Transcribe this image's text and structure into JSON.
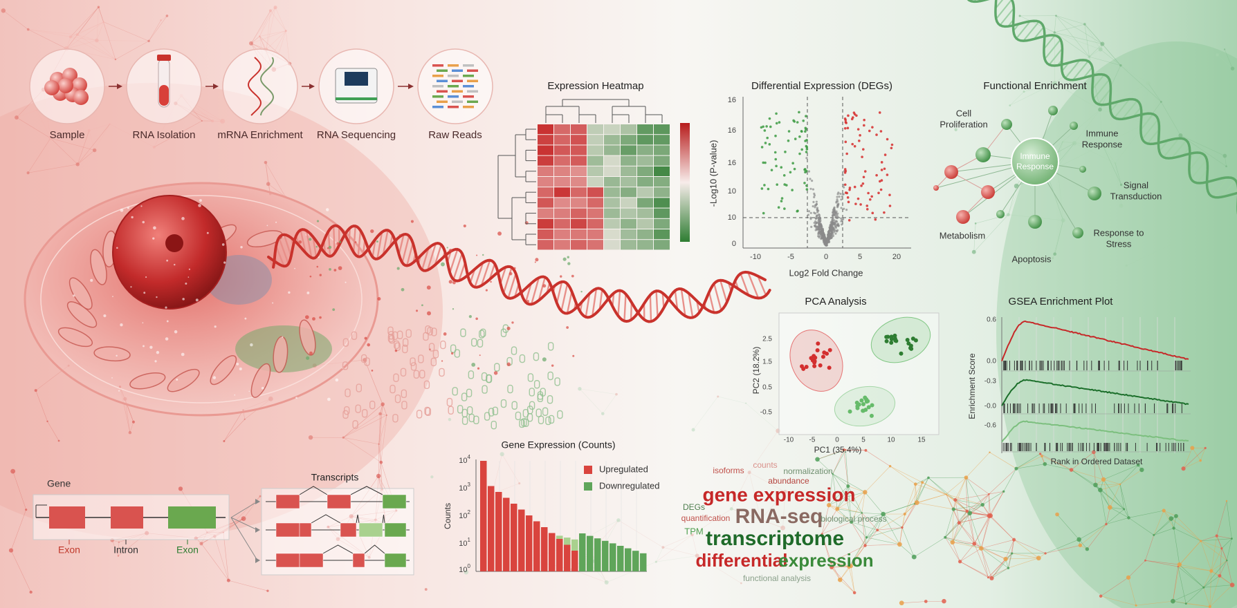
{
  "pipeline": {
    "steps": [
      "Sample",
      "RNA Isolation",
      "mRNA Enrichment",
      "RNA Sequencing",
      "Raw Reads"
    ]
  },
  "heatmap": {
    "title": "Expression Heatmap"
  },
  "volcano": {
    "title": "Differential Expression (DEGs)",
    "y_label": "-Log10 (P-value)",
    "x_label": "Log2 Fold Change",
    "yticks": [
      "16",
      "16",
      "16",
      "10",
      "10",
      "0"
    ],
    "xticks": [
      "-10",
      "-5",
      "0",
      "5",
      "20"
    ]
  },
  "enrichment": {
    "title": "Functional Enrichment",
    "center": [
      "Immune",
      "Response"
    ],
    "terms": [
      [
        "Cell",
        "Proliferation"
      ],
      [
        "Immune",
        "Response"
      ],
      [
        "Signal",
        "Transduction"
      ],
      [
        "Metabolism"
      ],
      [
        "Response to",
        "Stress"
      ],
      [
        "Apoptosis"
      ]
    ]
  },
  "pca": {
    "title": "PCA Analysis",
    "y_label": "PC2 (18.2%)",
    "x_label": "PC1 (35.4%)",
    "yticks": [
      "2.5",
      "1.5",
      "0.5",
      "-0.5"
    ],
    "xticks": [
      "-10",
      "-5",
      "0",
      "5",
      "10",
      "15"
    ]
  },
  "gsea": {
    "title": "GSEA Enrichment Plot",
    "y_label": "Enrichment Score",
    "x_label": "Rank in Ordered Dataset",
    "yticks": [
      "0.6",
      "0.0",
      "-0.3",
      "-0.0",
      "-0.6"
    ]
  },
  "counts": {
    "title": "Gene Expression (Counts)",
    "y_label": "Counts",
    "yticks": [
      {
        "base": "10",
        "exp": "4"
      },
      {
        "base": "10",
        "exp": "3"
      },
      {
        "base": "10",
        "exp": "2"
      },
      {
        "base": "10",
        "exp": "1"
      },
      {
        "base": "10",
        "exp": "0"
      }
    ],
    "legend": [
      "Upregulated",
      "Downregulated"
    ]
  },
  "gene_structure": {
    "gene": "Gene",
    "labels": [
      "Exon",
      "Intron",
      "Exon"
    ]
  },
  "transcripts": {
    "title": "Transcripts"
  },
  "word_cloud": {
    "words": [
      "isoforms",
      "counts",
      "normalization",
      "abundance",
      "gene expression",
      "DEGs",
      "quantification",
      "RNA-seq",
      "biological process",
      "TPM",
      "transcriptome",
      "differential",
      "expression",
      "functional analysis"
    ]
  }
}
